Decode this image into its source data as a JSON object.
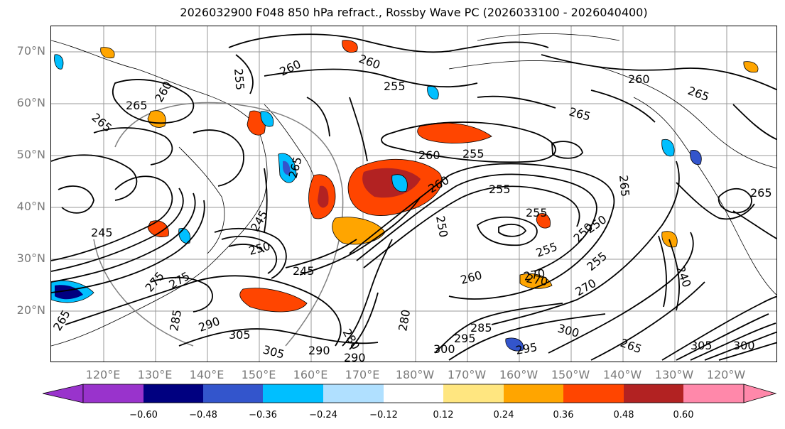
{
  "title": "2026032900 F048 850 hPa refract., Rossby Wave PC (2026033100 - 2026040400)",
  "latitudes": [
    "70°N",
    "60°N",
    "50°N",
    "40°N",
    "30°N",
    "20°N"
  ],
  "longitudes": [
    "120°E",
    "130°E",
    "140°E",
    "150°E",
    "160°E",
    "170°E",
    "180°W",
    "170°W",
    "160°W",
    "150°W",
    "140°W",
    "130°W",
    "120°W"
  ],
  "colorbar": {
    "colors": [
      "#9933cc",
      "#000080",
      "#3355cc",
      "#00bfff",
      "#b0e0ff",
      "#ffffff",
      "#ffe680",
      "#ffa500",
      "#ff4500",
      "#b22222",
      "#ff88aa"
    ],
    "ticks": [
      "−0.60",
      "−0.48",
      "−0.36",
      "−0.24",
      "−0.12",
      "0.12",
      "0.24",
      "0.36",
      "0.48",
      "0.60"
    ]
  },
  "contour_labels": [
    "255",
    "260",
    "260",
    "255",
    "260",
    "265",
    "265",
    "265",
    "260",
    "265",
    "260",
    "255",
    "265",
    "265",
    "255",
    "260",
    "255",
    "250",
    "245",
    "250",
    "245",
    "245",
    "250",
    "255",
    "265",
    "270",
    "275",
    "290",
    "305",
    "305",
    "290",
    "290",
    "280",
    "280",
    "285",
    "295",
    "300",
    "300",
    "305",
    "265",
    "240",
    "275",
    "270",
    "255",
    "260",
    "250",
    "270",
    "285",
    "295",
    "300",
    "265"
  ],
  "colors": {
    "positive_fill": "#ff4500",
    "negative_fill": "#00bfff",
    "contour_line": "#000000",
    "tick_label": "#7a7a7a"
  }
}
